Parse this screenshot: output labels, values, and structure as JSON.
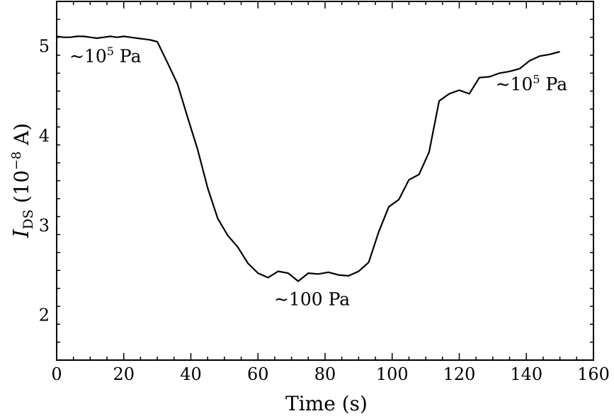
{
  "chart_data": {
    "type": "line",
    "xlabel": "Time (s)",
    "ylabel": {
      "symbol": "I",
      "subscript": "DS",
      "unit_open": " (10",
      "unit_exponent": "−8",
      "unit_close": " A)"
    },
    "xlim": [
      0,
      160
    ],
    "ylim": [
      1.5,
      5.5
    ],
    "x_ticks": [
      0,
      20,
      40,
      60,
      80,
      100,
      120,
      140,
      160
    ],
    "y_ticks": [
      2,
      3,
      4,
      5
    ],
    "grid": false,
    "series": [
      {
        "color": "#000000",
        "x": [
          0,
          2,
          4,
          6,
          8,
          10,
          12,
          14,
          16,
          18,
          20,
          22,
          24,
          26,
          28,
          30,
          33,
          36,
          39,
          42,
          45,
          48,
          51,
          54,
          57,
          60,
          63,
          66,
          69,
          72,
          75,
          78,
          81,
          84,
          87,
          90,
          93,
          96,
          99,
          102,
          105,
          108,
          111,
          114,
          117,
          120,
          123,
          126,
          129,
          132,
          135,
          138,
          141,
          144,
          147,
          150
        ],
        "y": [
          5.11,
          5.1,
          5.1,
          5.11,
          5.11,
          5.1,
          5.09,
          5.1,
          5.11,
          5.1,
          5.11,
          5.1,
          5.09,
          5.08,
          5.07,
          5.05,
          4.82,
          4.58,
          4.21,
          3.85,
          3.42,
          3.08,
          2.89,
          2.76,
          2.58,
          2.47,
          2.42,
          2.49,
          2.47,
          2.38,
          2.47,
          2.46,
          2.48,
          2.45,
          2.44,
          2.49,
          2.59,
          2.93,
          3.21,
          3.29,
          3.51,
          3.57,
          3.82,
          4.39,
          4.47,
          4.51,
          4.47,
          4.65,
          4.66,
          4.7,
          4.72,
          4.75,
          4.84,
          4.89,
          4.91,
          4.94
        ]
      }
    ],
    "annotations": [
      {
        "base": "~10",
        "exponent": "5",
        "unit": " Pa",
        "x": 0,
        "y": 4.82
      },
      {
        "base": "~100",
        "exponent": "",
        "unit": " Pa",
        "x": 61,
        "y": 2.11
      },
      {
        "base": "~10",
        "exponent": "5",
        "unit": " Pa",
        "x": 127,
        "y": 4.51
      }
    ]
  }
}
